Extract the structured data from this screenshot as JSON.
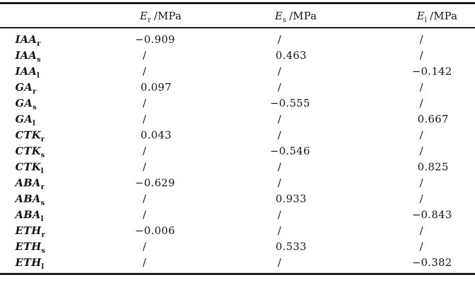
{
  "page": {
    "background_color": "#ffffff",
    "text_color": "#141414",
    "rule_color": "#1a1a1a"
  },
  "table": {
    "placeholder_symbol": "/",
    "header": {
      "row_label_column": "",
      "columns": [
        {
          "symbol": "E",
          "subscript": "r",
          "unit": "/MPa"
        },
        {
          "symbol": "E",
          "subscript": "s",
          "unit": "/MPa"
        },
        {
          "symbol": "E",
          "subscript": "l",
          "unit": "/MPa"
        }
      ]
    },
    "rows": [
      {
        "hormone": "IAA",
        "subscript": "r",
        "values": [
          "−0.909",
          "/",
          "/"
        ]
      },
      {
        "hormone": "IAA",
        "subscript": "s",
        "values": [
          "/",
          "0.463",
          "/"
        ]
      },
      {
        "hormone": "IAA",
        "subscript": "l",
        "values": [
          "/",
          "/",
          "−0.142"
        ]
      },
      {
        "hormone": "GA",
        "subscript": "r",
        "values": [
          "0.097",
          "/",
          "/"
        ]
      },
      {
        "hormone": "GA",
        "subscript": "s",
        "values": [
          "/",
          "−0.555",
          "/"
        ]
      },
      {
        "hormone": "GA",
        "subscript": "l",
        "values": [
          "/",
          "/",
          "0.667"
        ]
      },
      {
        "hormone": "CTK",
        "subscript": "r",
        "values": [
          "0.043",
          "/",
          "/"
        ]
      },
      {
        "hormone": "CTK",
        "subscript": "s",
        "values": [
          "/",
          "−0.546",
          "/"
        ]
      },
      {
        "hormone": "CTK",
        "subscript": "l",
        "values": [
          "/",
          "/",
          "0.825"
        ]
      },
      {
        "hormone": "ABA",
        "subscript": "r",
        "values": [
          "−0.629",
          "/",
          "/"
        ]
      },
      {
        "hormone": "ABA",
        "subscript": "s",
        "values": [
          "/",
          "0.933",
          "/"
        ]
      },
      {
        "hormone": "ABA",
        "subscript": "l",
        "values": [
          "/",
          "/",
          "−0.843"
        ]
      },
      {
        "hormone": "ETH",
        "subscript": "r",
        "values": [
          "−0.006",
          "/",
          "/"
        ]
      },
      {
        "hormone": "ETH",
        "subscript": "s",
        "values": [
          "/",
          "0.533",
          "/"
        ]
      },
      {
        "hormone": "ETH",
        "subscript": "l",
        "values": [
          "/",
          "/",
          "−0.382"
        ]
      }
    ]
  }
}
